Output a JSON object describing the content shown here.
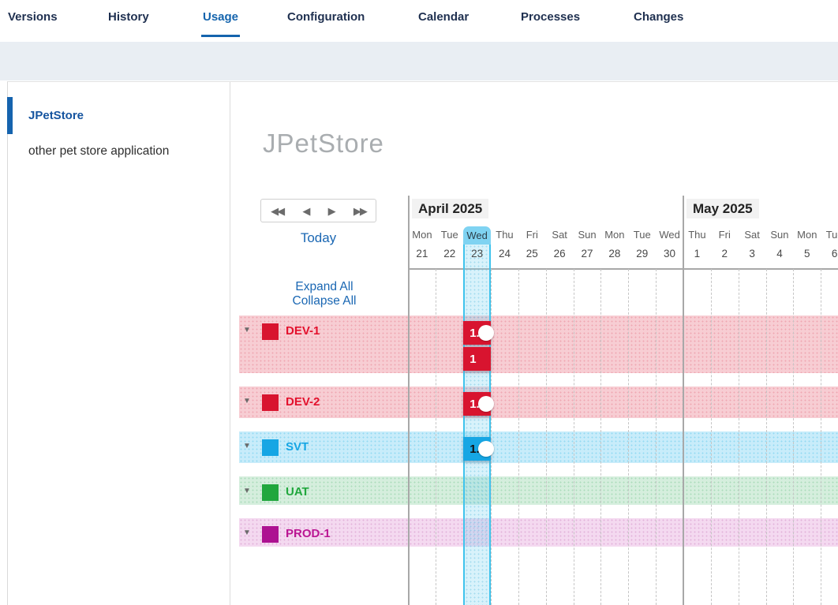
{
  "tabs": {
    "items": [
      {
        "label": "Versions",
        "active": false
      },
      {
        "label": "History",
        "active": false
      },
      {
        "label": "Usage",
        "active": true
      },
      {
        "label": "Configuration",
        "active": false
      },
      {
        "label": "Calendar",
        "active": false
      },
      {
        "label": "Processes",
        "active": false
      },
      {
        "label": "Changes",
        "active": false
      }
    ]
  },
  "sidebar": {
    "items": [
      {
        "label": "JPetStore",
        "active": true
      },
      {
        "label": "other pet store application",
        "active": false
      }
    ],
    "active_color": "#15549f"
  },
  "main": {
    "title": "JPetStore",
    "controls": {
      "today": "Today",
      "expand": "Expand All",
      "collapse": "Collapse All",
      "nav": [
        {
          "name": "fast-backward",
          "glyph": "◀◀"
        },
        {
          "name": "step-backward",
          "glyph": "◀"
        },
        {
          "name": "step-forward",
          "glyph": "▶"
        },
        {
          "name": "fast-forward",
          "glyph": "▶▶"
        }
      ]
    },
    "timeline": {
      "months": [
        {
          "label": "April 2025"
        },
        {
          "label": "May 2025"
        }
      ],
      "days": [
        {
          "dow": "Mon",
          "date": "21"
        },
        {
          "dow": "Tue",
          "date": "22"
        },
        {
          "dow": "Wed",
          "date": "23"
        },
        {
          "dow": "Thu",
          "date": "24"
        },
        {
          "dow": "Fri",
          "date": "25"
        },
        {
          "dow": "Sat",
          "date": "26"
        },
        {
          "dow": "Sun",
          "date": "27"
        },
        {
          "dow": "Mon",
          "date": "28"
        },
        {
          "dow": "Tue",
          "date": "29"
        },
        {
          "dow": "Wed",
          "date": "30"
        },
        {
          "dow": "Thu",
          "date": "1"
        },
        {
          "dow": "Fri",
          "date": "2"
        },
        {
          "dow": "Sat",
          "date": "3"
        },
        {
          "dow": "Sun",
          "date": "4"
        },
        {
          "dow": "Mon",
          "date": "5"
        },
        {
          "dow": "Tue",
          "date": "6"
        }
      ],
      "today_index": 2,
      "toggle_glyph": "▼",
      "today_colors": {
        "border": "#3fc3ec",
        "pill": "#7fd3f2"
      }
    },
    "environments": [
      {
        "name": "DEV-1",
        "accent": "#d8142f",
        "label_color": "#e3112d",
        "band": "#f7cdd3",
        "band_dot": "#efa6b2",
        "versions": [
          {
            "label": "1.",
            "text": "#ffffff",
            "deployed_marker": true
          },
          {
            "label": "1",
            "text": "#ffffff",
            "deployed_marker": false
          }
        ]
      },
      {
        "name": "DEV-2",
        "accent": "#d8142f",
        "label_color": "#e3112d",
        "band": "#f7cdd3",
        "band_dot": "#efa6b2",
        "versions": [
          {
            "label": "1.",
            "text": "#ffffff",
            "deployed_marker": true
          }
        ]
      },
      {
        "name": "SVT",
        "accent": "#16a6e4",
        "label_color": "#16a6e4",
        "band": "#c8ecfa",
        "band_dot": "#93daf3",
        "versions": [
          {
            "label": "1.",
            "text": "#121212",
            "deployed_marker": true
          }
        ]
      },
      {
        "name": "UAT",
        "accent": "#20a73d",
        "label_color": "#20a73d",
        "band": "#d5eedd",
        "band_dot": "#abdcba",
        "versions": []
      },
      {
        "name": "PROD-1",
        "accent": "#ad1191",
        "label_color": "#bb1693",
        "band": "#f4d9f0",
        "band_dot": "#e2b2da",
        "versions": []
      }
    ]
  }
}
